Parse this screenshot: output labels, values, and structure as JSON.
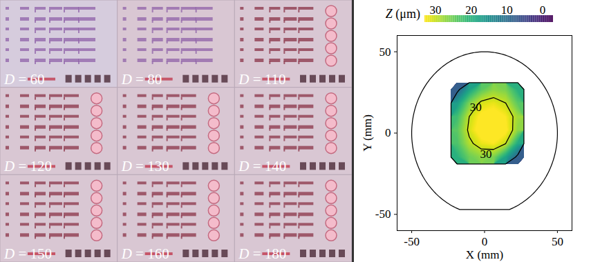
{
  "chart_data": {
    "type": "contour",
    "xlabel": "X (mm)",
    "ylabel": "Y (mm)",
    "xlim": [
      -60,
      60
    ],
    "ylim": [
      -60,
      60
    ],
    "xticks": [
      -50,
      0,
      50
    ],
    "yticks": [
      -50,
      0,
      50
    ],
    "wafer_outline": {
      "radius": 50,
      "flat_y": -47
    },
    "heatmap": {
      "xlim": [
        -23,
        27
      ],
      "ylim": [
        31,
        -19
      ],
      "z": [
        [
          8,
          18,
          24,
          27,
          26,
          20
        ],
        [
          17,
          26,
          31,
          32,
          30,
          24
        ],
        [
          22,
          30,
          34,
          35,
          33,
          28
        ],
        [
          24,
          31,
          35,
          35,
          34,
          27
        ],
        [
          23,
          29,
          32,
          33,
          30,
          19
        ],
        [
          20,
          25,
          27,
          26,
          18,
          8
        ]
      ]
    },
    "contour_lines": [
      10,
      30
    ],
    "contour_labels": [
      {
        "x": -6,
        "y": 16,
        "value": 30
      },
      {
        "x": 1,
        "y": -13,
        "value": 30
      }
    ],
    "colorbar_label": "Z (μm)",
    "colorbar_lim": [
      33,
      -3
    ],
    "colorbar_ticks": [
      30,
      20,
      10,
      0
    ]
  },
  "image_panel": {
    "labels": [
      "D = 60",
      "D = 80",
      "D = 110",
      "D = 120",
      "D = 130",
      "D = 140",
      "D = 150",
      "D = 160",
      "D = 180"
    ]
  }
}
